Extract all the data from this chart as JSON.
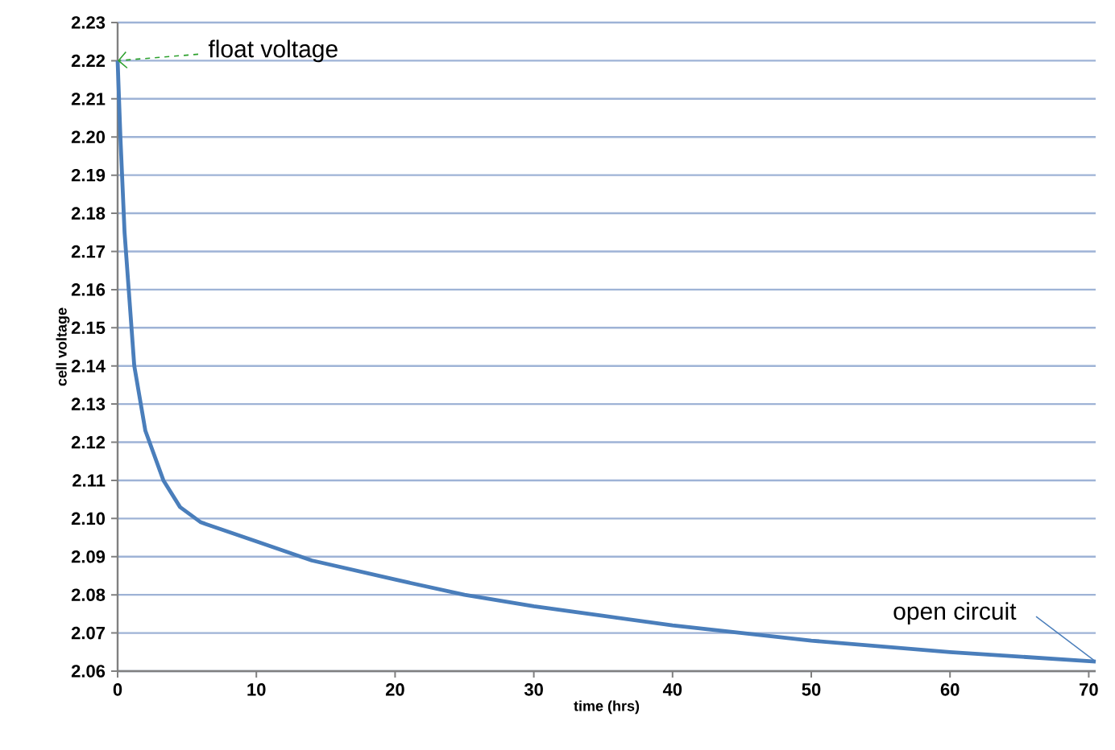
{
  "chart_data": {
    "type": "line",
    "xlabel": "time (hrs)",
    "ylabel": "cell voltage",
    "x": [
      0,
      0.2,
      0.5,
      0.8,
      1.2,
      2,
      3.3,
      4.5,
      6,
      10,
      14,
      20,
      25,
      30,
      40,
      50,
      60,
      70.5
    ],
    "series": [
      {
        "color": "#4a7ebb",
        "values": [
          2.22,
          2.2,
          2.175,
          2.16,
          2.14,
          2.123,
          2.11,
          2.103,
          2.099,
          2.094,
          2.089,
          2.084,
          2.08,
          2.077,
          2.072,
          2.068,
          2.065,
          2.0625
        ]
      }
    ],
    "xlim": [
      0,
      70.5
    ],
    "ylim": [
      2.06,
      2.23
    ],
    "xticks": [
      0,
      10,
      20,
      30,
      40,
      50,
      60,
      70
    ],
    "yticks": [
      {
        "value": 2.06,
        "label": "2.06"
      },
      {
        "value": 2.07,
        "label": "2.07"
      },
      {
        "value": 2.08,
        "label": "2.08"
      },
      {
        "value": 2.09,
        "label": "2.09"
      },
      {
        "value": 2.1,
        "label": "2.10"
      },
      {
        "value": 2.11,
        "label": "2.11"
      },
      {
        "value": 2.12,
        "label": "2.12"
      },
      {
        "value": 2.13,
        "label": "2.13"
      },
      {
        "value": 2.14,
        "label": "2.14"
      },
      {
        "value": 2.15,
        "label": "2.15"
      },
      {
        "value": 2.16,
        "label": "2.16"
      },
      {
        "value": 2.17,
        "label": "2.17"
      },
      {
        "value": 2.18,
        "label": "2.18"
      },
      {
        "value": 2.19,
        "label": "2.19"
      },
      {
        "value": 2.2,
        "label": "2.20"
      },
      {
        "value": 2.21,
        "label": "2.21"
      },
      {
        "value": 2.22,
        "label": "2.22"
      },
      {
        "value": 2.23,
        "label": "2.23"
      }
    ],
    "grid": "y",
    "marker": "none",
    "line_style": "solid",
    "annotations": [
      {
        "text": "float voltage",
        "x": 0,
        "y": 2.22
      },
      {
        "text": "open circuit",
        "x": 70.5,
        "y": 2.0625
      }
    ]
  }
}
